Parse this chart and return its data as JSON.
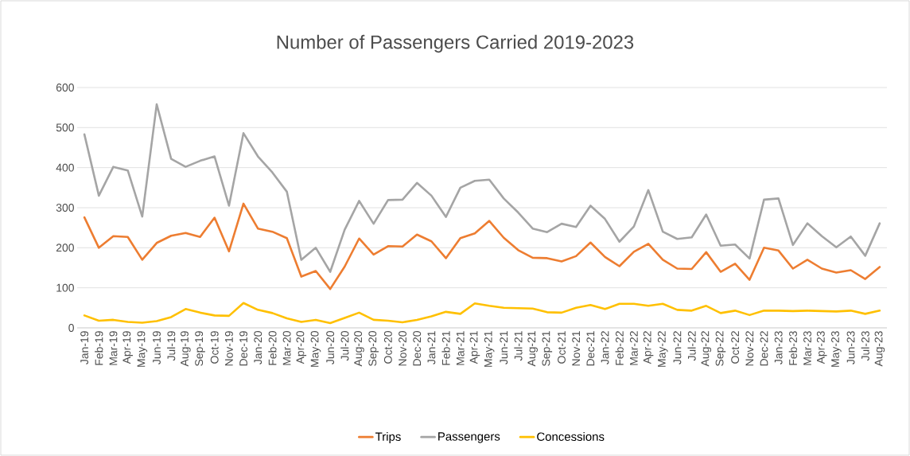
{
  "chart_data": {
    "type": "line",
    "title": "Number of Passengers Carried 2019-2023",
    "categories": [
      "Jan-19",
      "Feb-19",
      "Mar-19",
      "Apr-19",
      "May-19",
      "Jun-19",
      "Jul-19",
      "Aug-19",
      "Sep-19",
      "Oct-19",
      "Nov-19",
      "Dec-19",
      "Jan-20",
      "Feb-20",
      "Mar-20",
      "Apr-20",
      "May-20",
      "Jun-20",
      "Jul-20",
      "Aug-20",
      "Sep-20",
      "Oct-20",
      "Nov-20",
      "Dec-20",
      "Jan-21",
      "Feb-21",
      "Mar-21",
      "Apr-21",
      "May-21",
      "Jun-21",
      "Jul-21",
      "Aug-21",
      "Sep-21",
      "Oct-21",
      "Nov-21",
      "Dec-21",
      "Jan-22",
      "Feb-22",
      "Mar-22",
      "Apr-22",
      "May-22",
      "Jun-22",
      "Jul-22",
      "Aug-22",
      "Sep-22",
      "Oct-22",
      "Nov-22",
      "Dec-22",
      "Jan-23",
      "Feb-23",
      "Mar-23",
      "Apr-23",
      "May-23",
      "Jun-23",
      "Jul-23",
      "Aug-23"
    ],
    "series": [
      {
        "name": "Trips",
        "color": "#ed7d31",
        "values": [
          276,
          200,
          229,
          227,
          170,
          212,
          230,
          237,
          227,
          275,
          191,
          310,
          248,
          240,
          224,
          128,
          142,
          97,
          153,
          223,
          183,
          204,
          203,
          233,
          216,
          174,
          224,
          236,
          267,
          225,
          194,
          175,
          174,
          166,
          179,
          213,
          177,
          154,
          190,
          210,
          170,
          148,
          147,
          189,
          140,
          160,
          120,
          200,
          193,
          148,
          170,
          148,
          138,
          144,
          122,
          152
        ]
      },
      {
        "name": "Passengers",
        "color": "#a5a5a5",
        "values": [
          483,
          330,
          402,
          393,
          278,
          558,
          422,
          402,
          417,
          428,
          305,
          486,
          428,
          388,
          340,
          170,
          200,
          140,
          245,
          317,
          260,
          319,
          320,
          362,
          330,
          277,
          350,
          367,
          370,
          323,
          288,
          248,
          239,
          260,
          252,
          305,
          272,
          215,
          253,
          344,
          240,
          222,
          226,
          283,
          205,
          208,
          173,
          320,
          323,
          207,
          261,
          229,
          201,
          228,
          180,
          261
        ]
      },
      {
        "name": "Concessions",
        "color": "#ffc000",
        "values": [
          31,
          18,
          20,
          15,
          13,
          17,
          27,
          47,
          38,
          31,
          30,
          62,
          45,
          37,
          24,
          15,
          20,
          12,
          25,
          38,
          20,
          18,
          14,
          20,
          29,
          40,
          35,
          61,
          55,
          50,
          49,
          48,
          39,
          38,
          50,
          57,
          47,
          60,
          60,
          55,
          60,
          45,
          43,
          55,
          37,
          43,
          32,
          43,
          43,
          42,
          43,
          42,
          41,
          43,
          35,
          43
        ]
      }
    ],
    "ylim": [
      0,
      600
    ],
    "yticks": [
      0,
      100,
      200,
      300,
      400,
      500,
      600
    ],
    "grid": "y",
    "legend": "bottom",
    "marker": "none",
    "line_style": "solid"
  }
}
